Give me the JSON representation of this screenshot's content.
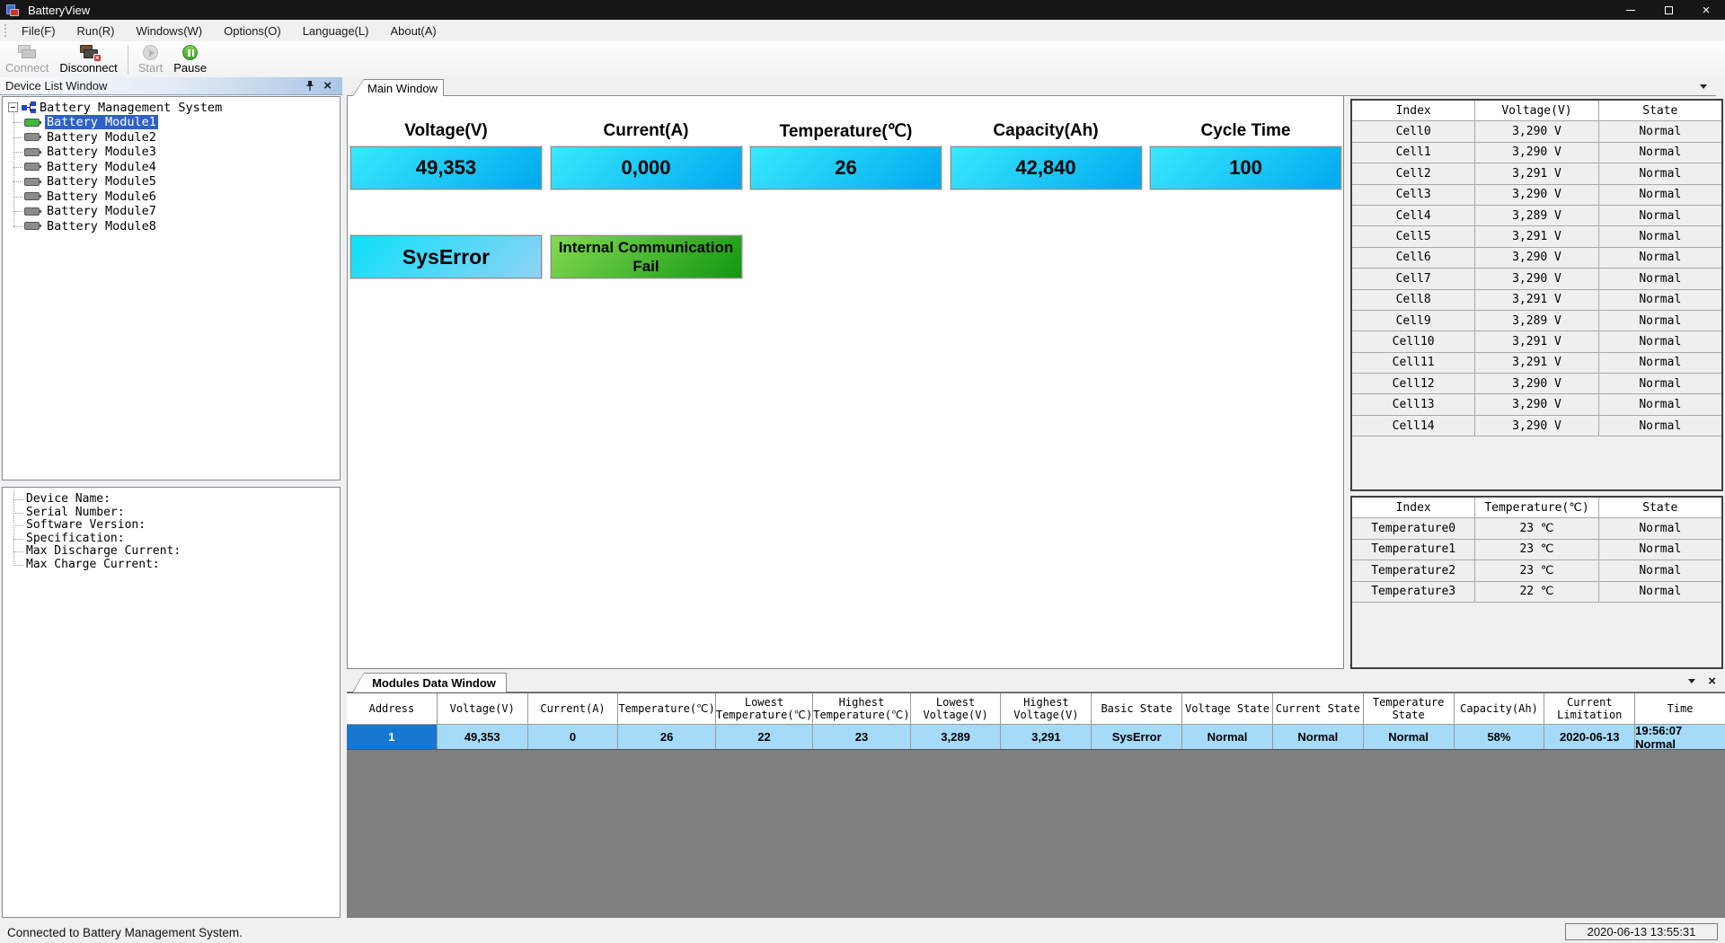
{
  "window": {
    "title": "BatteryView"
  },
  "menu": {
    "items": [
      "File(F)",
      "Run(R)",
      "Windows(W)",
      "Options(O)",
      "Language(L)",
      "About(A)"
    ]
  },
  "toolbar": {
    "buttons": [
      {
        "label": "Connect",
        "icon": "connect-icon",
        "enabled": false
      },
      {
        "label": "Disconnect",
        "icon": "disconnect-icon",
        "enabled": true
      },
      {
        "label": "Start",
        "icon": "start-icon",
        "enabled": false
      },
      {
        "label": "Pause",
        "icon": "pause-icon",
        "enabled": true
      }
    ]
  },
  "device_list": {
    "title": "Device List Window",
    "root_label": "Battery Management System",
    "modules": [
      {
        "label": "Battery Module1",
        "selected": true,
        "status_color": "#3cb93c"
      },
      {
        "label": "Battery Module2",
        "selected": false,
        "status_color": "#8c8c8c"
      },
      {
        "label": "Battery Module3",
        "selected": false,
        "status_color": "#8c8c8c"
      },
      {
        "label": "Battery Module4",
        "selected": false,
        "status_color": "#8c8c8c"
      },
      {
        "label": "Battery Module5",
        "selected": false,
        "status_color": "#8c8c8c"
      },
      {
        "label": "Battery Module6",
        "selected": false,
        "status_color": "#8c8c8c"
      },
      {
        "label": "Battery Module7",
        "selected": false,
        "status_color": "#8c8c8c"
      },
      {
        "label": "Battery Module8",
        "selected": false,
        "status_color": "#8c8c8c"
      }
    ]
  },
  "device_info": {
    "fields": [
      "Device Name:",
      "Serial Number:",
      "Software Version:",
      "Specification:",
      "Max Discharge Current:",
      "Max Charge Current:"
    ]
  },
  "main_window": {
    "tab_label": "Main Window",
    "metrics": [
      {
        "label": "Voltage(V)",
        "value": "49,353"
      },
      {
        "label": "Current(A)",
        "value": "0,000"
      },
      {
        "label": "Temperature(℃)",
        "value": "26"
      },
      {
        "label": "Capacity(Ah)",
        "value": "42,840"
      },
      {
        "label": "Cycle Time",
        "value": "100"
      }
    ],
    "metric_box_gradient": [
      "#38e9fd",
      "#00a9ef"
    ],
    "status_indicators": [
      {
        "label": "SysError",
        "gradient": [
          "#0ce0fa",
          "#8fd2f4"
        ],
        "size": "big"
      },
      {
        "label": "Internal Communication Fail",
        "gradient": [
          "#83da52",
          "#119711"
        ],
        "size": "small"
      }
    ]
  },
  "cell_table": {
    "headers": [
      "Index",
      "Voltage(V)",
      "State"
    ],
    "rows": [
      [
        "Cell0",
        "3,290 V",
        "Normal"
      ],
      [
        "Cell1",
        "3,290 V",
        "Normal"
      ],
      [
        "Cell2",
        "3,291 V",
        "Normal"
      ],
      [
        "Cell3",
        "3,290 V",
        "Normal"
      ],
      [
        "Cell4",
        "3,289 V",
        "Normal"
      ],
      [
        "Cell5",
        "3,291 V",
        "Normal"
      ],
      [
        "Cell6",
        "3,290 V",
        "Normal"
      ],
      [
        "Cell7",
        "3,290 V",
        "Normal"
      ],
      [
        "Cell8",
        "3,291 V",
        "Normal"
      ],
      [
        "Cell9",
        "3,289 V",
        "Normal"
      ],
      [
        "Cell10",
        "3,291 V",
        "Normal"
      ],
      [
        "Cell11",
        "3,291 V",
        "Normal"
      ],
      [
        "Cell12",
        "3,290 V",
        "Normal"
      ],
      [
        "Cell13",
        "3,290 V",
        "Normal"
      ],
      [
        "Cell14",
        "3,290 V",
        "Normal"
      ]
    ]
  },
  "temperature_table": {
    "headers": [
      "Index",
      "Temperature(℃)",
      "State"
    ],
    "rows": [
      [
        "Temperature0",
        "23 ℃",
        "Normal"
      ],
      [
        "Temperature1",
        "23 ℃",
        "Normal"
      ],
      [
        "Temperature2",
        "23 ℃",
        "Normal"
      ],
      [
        "Temperature3",
        "22 ℃",
        "Normal"
      ]
    ]
  },
  "modules_window": {
    "tab_label": "Modules Data Window",
    "headers": [
      "Address",
      "Voltage(V)",
      "Current(A)",
      "Temperature(℃)",
      "Lowest\nTemperature(℃)",
      "Highest\nTemperature(℃)",
      "Lowest\nVoltage(V)",
      "Highest\nVoltage(V)",
      "Basic State",
      "Voltage State",
      "Current State",
      "Temperature\nState",
      "Capacity(Ah)",
      "Current\nLimitation",
      "Time"
    ],
    "row": [
      "1",
      "49,353",
      "0",
      "26",
      "22",
      "23",
      "3,289",
      "3,291",
      "SysError",
      "Normal",
      "Normal",
      "Normal",
      "58%",
      "2020-06-13",
      "19:56:07 Normal"
    ]
  },
  "status_bar": {
    "message": "Connected to Battery Management System.",
    "datetime": "2020-06-13 13:55:31"
  }
}
